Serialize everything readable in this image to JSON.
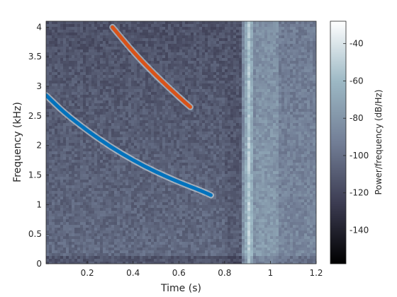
{
  "chart_data": {
    "type": "heatmap",
    "title": "",
    "xlabel": "Time (s)",
    "ylabel": "Frequency (kHz)",
    "xlim": [
      0.02,
      1.2
    ],
    "ylim": [
      0,
      4.1
    ],
    "x_ticks": [
      0.2,
      0.4,
      0.6,
      0.8,
      1,
      1.2
    ],
    "x_tick_labels": [
      "0.2",
      "0.4",
      "0.6",
      "0.8",
      "1",
      "1.2"
    ],
    "y_ticks": [
      0,
      0.5,
      1,
      1.5,
      2,
      2.5,
      3,
      3.5,
      4
    ],
    "y_tick_labels": [
      "0",
      "0.5",
      "1",
      "1.5",
      "2",
      "2.5",
      "3",
      "3.5",
      "4"
    ],
    "colorbar": {
      "label": "Power/frequency (dB/Hz)",
      "range": [
        -158,
        -28
      ],
      "ticks": [
        -140,
        -120,
        -100,
        -80,
        -60,
        -40
      ],
      "tick_labels": [
        "-140",
        "-120",
        "-100",
        "-80",
        "-60",
        "-40"
      ],
      "colors": [
        "#000000",
        "#3c3c52",
        "#727e96",
        "#9cb8c4",
        "#ffffff"
      ]
    },
    "broadband_event": {
      "t_start": 0.87,
      "t_end": 1.2,
      "peak_t": 0.9
    },
    "series": [
      {
        "color": "#0072BD",
        "x": [
          0.02,
          0.1,
          0.2,
          0.3,
          0.4,
          0.5,
          0.6,
          0.7,
          0.74
        ],
        "y": [
          2.85,
          2.55,
          2.25,
          1.98,
          1.75,
          1.55,
          1.38,
          1.23,
          1.16
        ]
      },
      {
        "color": "#D95319",
        "x": [
          0.31,
          0.4,
          0.5,
          0.6,
          0.65
        ],
        "y": [
          4.0,
          3.58,
          3.18,
          2.82,
          2.65
        ]
      }
    ]
  }
}
